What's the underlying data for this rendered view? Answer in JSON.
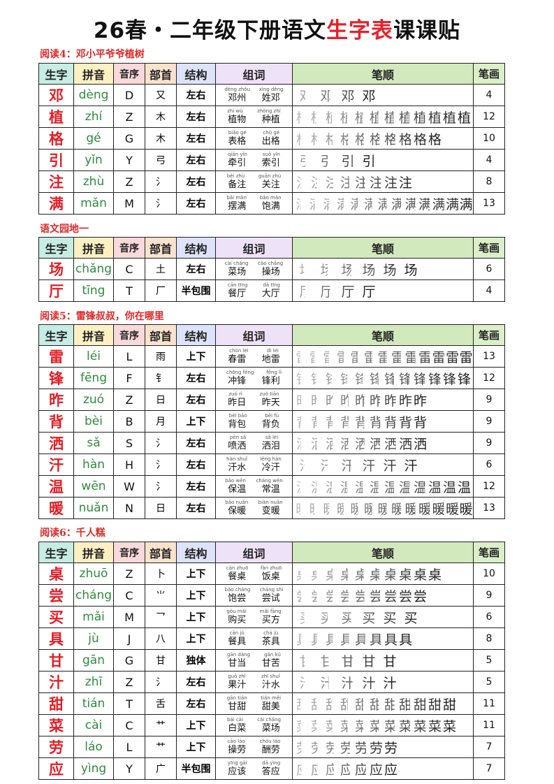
{
  "title": {
    "main": "26春・二年级下册语文",
    "highlight": "生字表",
    "tail": "课课贴"
  },
  "headers": [
    "生字",
    "拼音",
    "音序",
    "部首",
    "结构",
    "组词",
    "笔顺",
    "笔画"
  ],
  "colors": {
    "char": "#e41e26",
    "pinyin": "#2e8b3e",
    "section": "#e02828"
  },
  "sections": [
    {
      "label": "阅读4：邓小平爷爷植树",
      "rows": [
        {
          "char": "邓",
          "pinyin": "dèng",
          "order": "D",
          "radical": "又",
          "structure": "左右",
          "words": [
            {
              "py": "dèng zhōu",
              "w": "邓州"
            },
            {
              "py": "xìng dèng",
              "w": "姓邓"
            }
          ],
          "strokes": 4
        },
        {
          "char": "植",
          "pinyin": "zhí",
          "order": "Z",
          "radical": "木",
          "structure": "左右",
          "words": [
            {
              "py": "zhí wù",
              "w": "植物"
            },
            {
              "py": "zhòng zhí",
              "w": "种植"
            }
          ],
          "strokes": 12
        },
        {
          "char": "格",
          "pinyin": "gé",
          "order": "G",
          "radical": "木",
          "structure": "左右",
          "words": [
            {
              "py": "biǎo gé",
              "w": "表格"
            },
            {
              "py": "chū gé",
              "w": "出格"
            }
          ],
          "strokes": 10
        },
        {
          "char": "引",
          "pinyin": "yǐn",
          "order": "Y",
          "radical": "弓",
          "structure": "左右",
          "words": [
            {
              "py": "qiān yǐn",
              "w": "牵引"
            },
            {
              "py": "suǒ yǐn",
              "w": "索引"
            }
          ],
          "strokes": 4
        },
        {
          "char": "注",
          "pinyin": "zhù",
          "order": "Z",
          "radical": "氵",
          "structure": "左右",
          "words": [
            {
              "py": "bèi zhù",
              "w": "备注"
            },
            {
              "py": "guān zhù",
              "w": "关注"
            }
          ],
          "strokes": 8
        },
        {
          "char": "满",
          "pinyin": "mǎn",
          "order": "M",
          "radical": "氵",
          "structure": "左右",
          "words": [
            {
              "py": "bǎi mǎn",
              "w": "摆满"
            },
            {
              "py": "bǎo mǎn",
              "w": "饱满"
            }
          ],
          "strokes": 13
        }
      ]
    },
    {
      "label": "语文园地一",
      "rows": [
        {
          "char": "场",
          "pinyin": "chǎng",
          "order": "C",
          "radical": "土",
          "structure": "左右",
          "words": [
            {
              "py": "cài chǎng",
              "w": "菜场"
            },
            {
              "py": "cāo chǎng",
              "w": "操场"
            }
          ],
          "strokes": 6
        },
        {
          "char": "厅",
          "pinyin": "tīng",
          "order": "T",
          "radical": "厂",
          "structure": "半包围",
          "words": [
            {
              "py": "cān tīng",
              "w": "餐厅"
            },
            {
              "py": "dà tīng",
              "w": "大厅"
            }
          ],
          "strokes": 4
        }
      ]
    },
    {
      "label": "阅读5：雷锋叔叔，你在哪里",
      "rows": [
        {
          "char": "雷",
          "pinyin": "léi",
          "order": "L",
          "radical": "雨",
          "structure": "上下",
          "words": [
            {
              "py": "chūn léi",
              "w": "春雷"
            },
            {
              "py": "dì léi",
              "w": "地雷"
            }
          ],
          "strokes": 13
        },
        {
          "char": "锋",
          "pinyin": "fēng",
          "order": "F",
          "radical": "钅",
          "structure": "左右",
          "words": [
            {
              "py": "chōng fēng",
              "w": "冲锋"
            },
            {
              "py": "fēng lì",
              "w": "锋利"
            }
          ],
          "strokes": 12
        },
        {
          "char": "昨",
          "pinyin": "zuó",
          "order": "Z",
          "radical": "日",
          "structure": "左右",
          "words": [
            {
              "py": "zuó rì",
              "w": "昨日"
            },
            {
              "py": "zuó tiān",
              "w": "昨天"
            }
          ],
          "strokes": 9
        },
        {
          "char": "背",
          "pinyin": "bèi",
          "order": "B",
          "radical": "月",
          "structure": "上下",
          "words": [
            {
              "py": "bēi bāo",
              "w": "背包"
            },
            {
              "py": "bēi fù",
              "w": "背负"
            }
          ],
          "strokes": 9
        },
        {
          "char": "洒",
          "pinyin": "sǎ",
          "order": "S",
          "radical": "氵",
          "structure": "左右",
          "words": [
            {
              "py": "pēn sǎ",
              "w": "喷洒"
            },
            {
              "py": "sǎ lèi",
              "w": "洒泪"
            }
          ],
          "strokes": 9
        },
        {
          "char": "汗",
          "pinyin": "hàn",
          "order": "H",
          "radical": "氵",
          "structure": "左右",
          "words": [
            {
              "py": "hàn shuǐ",
              "w": "汗水"
            },
            {
              "py": "lěng hàn",
              "w": "冷汗"
            }
          ],
          "strokes": 6
        },
        {
          "char": "温",
          "pinyin": "wēn",
          "order": "W",
          "radical": "氵",
          "structure": "左右",
          "words": [
            {
              "py": "bǎo wēn",
              "w": "保温"
            },
            {
              "py": "cháng wēn",
              "w": "常温"
            }
          ],
          "strokes": 12
        },
        {
          "char": "暖",
          "pinyin": "nuǎn",
          "order": "N",
          "radical": "日",
          "structure": "左右",
          "words": [
            {
              "py": "bǎo nuǎn",
              "w": "保暖"
            },
            {
              "py": "biàn nuǎn",
              "w": "变暖"
            }
          ],
          "strokes": 13
        }
      ]
    },
    {
      "label": "阅读6：千人糕",
      "rows": [
        {
          "char": "桌",
          "pinyin": "zhuō",
          "order": "Z",
          "radical": "卜",
          "structure": "上下",
          "words": [
            {
              "py": "cān zhuō",
              "w": "餐桌"
            },
            {
              "py": "fàn zhuō",
              "w": "饭桌"
            }
          ],
          "strokes": 10
        },
        {
          "char": "尝",
          "pinyin": "cháng",
          "order": "C",
          "radical": "⺌",
          "structure": "上下",
          "words": [
            {
              "py": "bǎo cháng",
              "w": "饱尝"
            },
            {
              "py": "cháng shì",
              "w": "尝试"
            }
          ],
          "strokes": 9
        },
        {
          "char": "买",
          "pinyin": "mǎi",
          "order": "M",
          "radical": "乛",
          "structure": "上下",
          "words": [
            {
              "py": "gòu mǎi",
              "w": "购买"
            },
            {
              "py": "mǎi fāng",
              "w": "买方"
            }
          ],
          "strokes": 6
        },
        {
          "char": "具",
          "pinyin": "jù",
          "order": "J",
          "radical": "八",
          "structure": "上下",
          "words": [
            {
              "py": "cān jù",
              "w": "餐具"
            },
            {
              "py": "chá jù",
              "w": "茶具"
            }
          ],
          "strokes": 8
        },
        {
          "char": "甘",
          "pinyin": "gān",
          "order": "G",
          "radical": "甘",
          "structure": "独体",
          "words": [
            {
              "py": "gān dàng",
              "w": "甘当"
            },
            {
              "py": "gān kǔ",
              "w": "甘苦"
            }
          ],
          "strokes": 5
        },
        {
          "char": "汁",
          "pinyin": "zhī",
          "order": "Z",
          "radical": "氵",
          "structure": "左右",
          "words": [
            {
              "py": "guǒ zhī",
              "w": "果汁"
            },
            {
              "py": "zhī shuǐ",
              "w": "汁水"
            }
          ],
          "strokes": 5
        },
        {
          "char": "甜",
          "pinyin": "tián",
          "order": "T",
          "radical": "舌",
          "structure": "左右",
          "words": [
            {
              "py": "gān tián",
              "w": "甘甜"
            },
            {
              "py": "tián měi",
              "w": "甜美"
            }
          ],
          "strokes": 11
        },
        {
          "char": "菜",
          "pinyin": "cài",
          "order": "C",
          "radical": "艹",
          "structure": "上下",
          "words": [
            {
              "py": "bái cài",
              "w": "白菜"
            },
            {
              "py": "cài chǎng",
              "w": "菜场"
            }
          ],
          "strokes": 11
        },
        {
          "char": "劳",
          "pinyin": "láo",
          "order": "L",
          "radical": "艹",
          "structure": "上下",
          "words": [
            {
              "py": "cāo láo",
              "w": "操劳"
            },
            {
              "py": "chóu láo",
              "w": "酬劳"
            }
          ],
          "strokes": 7
        },
        {
          "char": "应",
          "pinyin": "yìng",
          "order": "Y",
          "radical": "广",
          "structure": "半包围",
          "words": [
            {
              "py": "yīng gāi",
              "w": "应该"
            },
            {
              "py": "dā yìng",
              "w": "答应"
            }
          ],
          "strokes": 7
        }
      ]
    }
  ]
}
